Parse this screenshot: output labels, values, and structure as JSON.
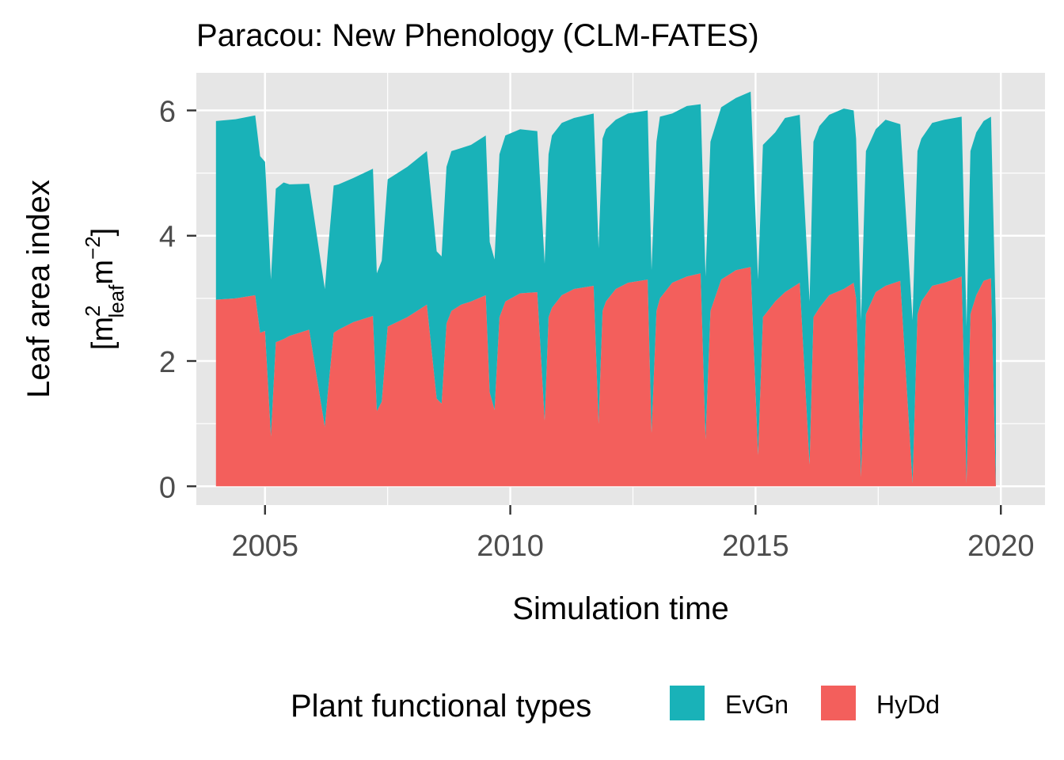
{
  "chart_data": {
    "type": "area",
    "stacked": true,
    "title": "Paracou: New Phenology (CLM-FATES)",
    "xlabel": "Simulation time",
    "ylabel": "Leaf area index",
    "ylabel_units": {
      "open": "[m",
      "sup1": "2",
      "sub1": "leaf",
      "mid": "m",
      "sup2": "−2",
      "close": "]"
    },
    "xlim": [
      2003.6,
      2020.9
    ],
    "ylim": [
      -0.3,
      6.6
    ],
    "x_ticks": [
      2005,
      2010,
      2015,
      2020
    ],
    "x_tick_labels": [
      "2005",
      "2010",
      "2015",
      "2020"
    ],
    "y_ticks": [
      0,
      2,
      4,
      6
    ],
    "y_tick_labels": [
      "0",
      "2",
      "4",
      "6"
    ],
    "grid": true,
    "legend": {
      "title": "Plant functional types",
      "position": "bottom"
    },
    "colors": {
      "EvGn": "#19b2b8",
      "HyDd": "#f35f5c",
      "panel": "#e6e6e6",
      "grid": "#ffffff"
    },
    "x": [
      2004.0,
      2004.4,
      2004.8,
      2004.9,
      2005.0,
      2005.12,
      2005.22,
      2005.38,
      2005.5,
      2005.9,
      2006.22,
      2006.28,
      2006.4,
      2006.5,
      2006.8,
      2007.2,
      2007.28,
      2007.38,
      2007.5,
      2007.9,
      2008.3,
      2008.5,
      2008.6,
      2008.7,
      2008.8,
      2009.0,
      2009.2,
      2009.5,
      2009.58,
      2009.68,
      2009.78,
      2009.9,
      2010.2,
      2010.55,
      2010.7,
      2010.78,
      2010.85,
      2011.05,
      2011.3,
      2011.7,
      2011.8,
      2011.88,
      2011.95,
      2012.15,
      2012.4,
      2012.8,
      2012.88,
      2012.98,
      2013.05,
      2013.3,
      2013.6,
      2013.88,
      2013.98,
      2014.08,
      2014.3,
      2014.6,
      2014.9,
      2015.05,
      2015.15,
      2015.4,
      2015.6,
      2015.9,
      2016.1,
      2016.18,
      2016.3,
      2016.5,
      2016.8,
      2017.0,
      2017.05,
      2017.15,
      2017.25,
      2017.45,
      2017.65,
      2017.95,
      2018.2,
      2018.3,
      2018.38,
      2018.6,
      2018.85,
      2019.2,
      2019.3,
      2019.38,
      2019.5,
      2019.65,
      2019.8,
      2019.9
    ],
    "series": [
      {
        "name": "HyDd",
        "values": [
          2.98,
          3.0,
          3.05,
          2.45,
          2.48,
          0.8,
          2.3,
          2.35,
          2.4,
          2.5,
          0.95,
          1.5,
          2.45,
          2.5,
          2.62,
          2.72,
          1.2,
          1.35,
          2.55,
          2.7,
          2.9,
          1.4,
          1.32,
          2.6,
          2.8,
          2.9,
          2.95,
          3.05,
          1.5,
          1.22,
          2.7,
          2.95,
          3.08,
          3.1,
          1.05,
          2.7,
          2.85,
          3.05,
          3.15,
          3.2,
          1.0,
          2.8,
          2.95,
          3.15,
          3.25,
          3.3,
          0.85,
          2.8,
          3.0,
          3.25,
          3.35,
          3.4,
          0.75,
          2.8,
          3.3,
          3.45,
          3.5,
          0.5,
          2.7,
          2.95,
          3.1,
          3.25,
          0.35,
          2.7,
          2.85,
          3.05,
          3.15,
          3.25,
          3.0,
          0.15,
          2.75,
          3.1,
          3.2,
          3.28,
          0.05,
          2.75,
          2.95,
          3.2,
          3.25,
          3.35,
          0.05,
          2.75,
          3.05,
          3.28,
          3.32,
          0.0
        ]
      },
      {
        "name": "EvGn",
        "values": [
          2.85,
          2.86,
          2.87,
          2.82,
          2.7,
          2.5,
          2.45,
          2.5,
          2.42,
          2.33,
          2.2,
          2.25,
          2.35,
          2.32,
          2.3,
          2.35,
          2.2,
          2.25,
          2.35,
          2.4,
          2.45,
          2.35,
          2.35,
          2.5,
          2.55,
          2.5,
          2.5,
          2.55,
          2.4,
          2.4,
          2.6,
          2.65,
          2.62,
          2.57,
          2.5,
          2.6,
          2.75,
          2.75,
          2.73,
          2.75,
          2.8,
          2.75,
          2.75,
          2.7,
          2.7,
          2.7,
          2.6,
          2.7,
          2.9,
          2.7,
          2.72,
          2.7,
          2.6,
          2.7,
          2.75,
          2.75,
          2.8,
          2.8,
          2.75,
          2.7,
          2.78,
          2.68,
          2.6,
          2.8,
          2.9,
          2.88,
          2.88,
          2.75,
          2.55,
          2.5,
          2.6,
          2.6,
          2.65,
          2.5,
          2.6,
          2.6,
          2.6,
          2.6,
          2.6,
          2.55,
          2.5,
          2.6,
          2.6,
          2.55,
          2.58,
          2.6
        ]
      }
    ]
  }
}
